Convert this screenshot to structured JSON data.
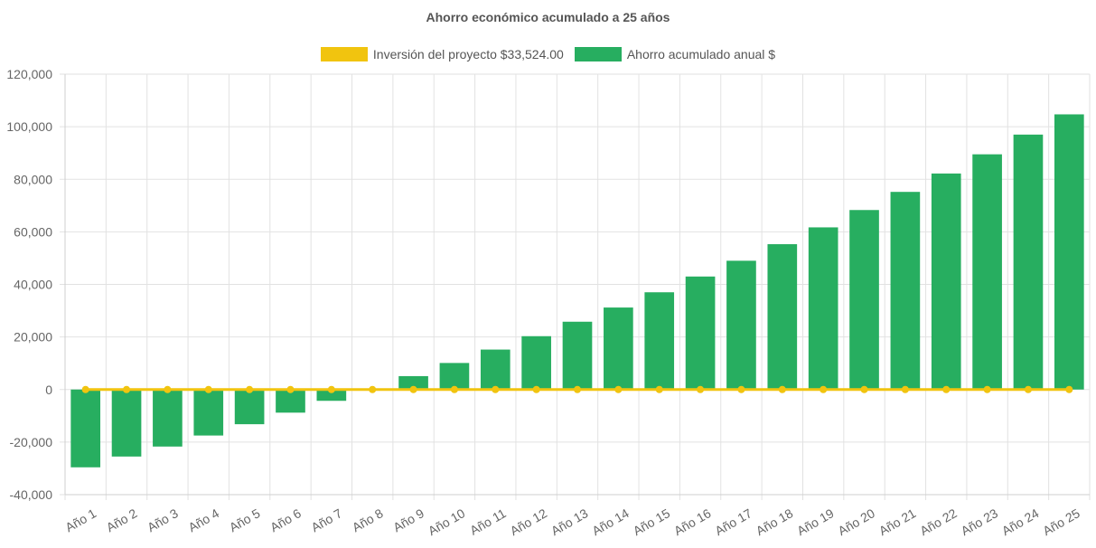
{
  "chart_data": {
    "type": "bar",
    "title": "Ahorro económico acumulado a 25 años",
    "categories": [
      "Año 1",
      "Año 2",
      "Año 3",
      "Año 4",
      "Año 5",
      "Año 6",
      "Año 7",
      "Año 8",
      "Año 9",
      "Año 10",
      "Año 11",
      "Año 12",
      "Año 13",
      "Año 14",
      "Año 15",
      "Año 16",
      "Año 17",
      "Año 18",
      "Año 19",
      "Año 20",
      "Año 21",
      "Año 22",
      "Año 23",
      "Año 24",
      "Año 25"
    ],
    "series": [
      {
        "name": "Inversión del proyecto $33,524.00",
        "type": "line",
        "color": "#f1c40f",
        "values": [
          0,
          0,
          0,
          0,
          0,
          0,
          0,
          0,
          0,
          0,
          0,
          0,
          0,
          0,
          0,
          0,
          0,
          0,
          0,
          0,
          0,
          0,
          0,
          0,
          0
        ]
      },
      {
        "name": "Ahorro acumulado anual $",
        "type": "bar",
        "color": "#27ae60",
        "values": [
          -29600,
          -25500,
          -21700,
          -17500,
          -13200,
          -8800,
          -4300,
          0,
          5100,
          10100,
          15200,
          20300,
          25800,
          31200,
          37000,
          43000,
          49000,
          55300,
          61700,
          68300,
          75200,
          82200,
          89500,
          97000,
          104700
        ]
      }
    ],
    "ylim": [
      -40000,
      120000
    ],
    "yticks": [
      "120,000",
      "100,000",
      "80,000",
      "60,000",
      "40,000",
      "20,000",
      "0",
      "-20,000",
      "-40,000"
    ],
    "ytick_values": [
      120000,
      100000,
      80000,
      60000,
      40000,
      20000,
      0,
      -20000,
      -40000
    ],
    "grid": true,
    "legend_position": "top-center"
  }
}
